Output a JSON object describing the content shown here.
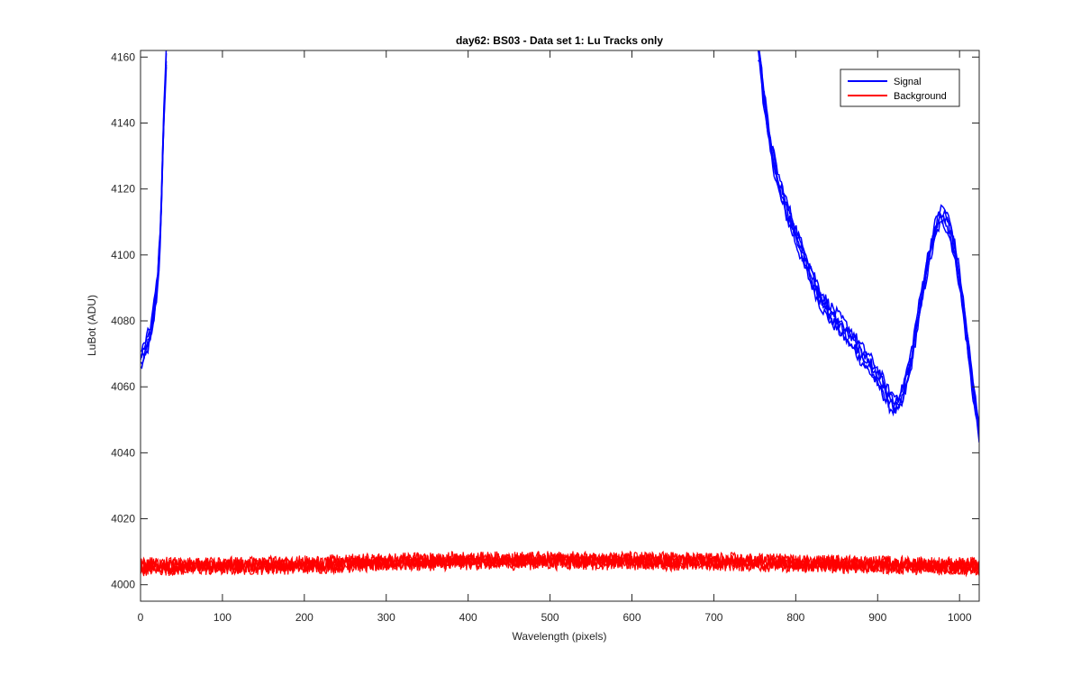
{
  "chart_data": {
    "type": "line",
    "title": "day62: BS03 - Data set 1: Lu Tracks only",
    "xlabel": "Wavelength (pixels)",
    "ylabel": "LuBot (ADU)",
    "xlim": [
      0,
      1024
    ],
    "ylim": [
      3995,
      4162
    ],
    "xticks": [
      "0",
      "100",
      "200",
      "300",
      "400",
      "500",
      "600",
      "700",
      "800",
      "900",
      "1000"
    ],
    "yticks": [
      "4000",
      "4020",
      "4040",
      "4060",
      "4080",
      "4100",
      "4120",
      "4140",
      "4160"
    ],
    "grid": false,
    "legend_position": "top-right",
    "colors": {
      "signal": "#0000ff",
      "background": "#ff0000"
    },
    "series": [
      {
        "name": "Signal",
        "segments": [
          {
            "x": [
              0,
              4,
              8,
              12,
              16,
              20,
              22,
              24,
              26,
              28,
              30,
              32
            ],
            "y": [
              4068,
              4070,
              4073,
              4076,
              4082,
              4090,
              4096,
              4106,
              4120,
              4138,
              4152,
              4162
            ]
          },
          {
            "x": [
              754,
              756,
              758,
              760,
              763,
              766,
              770,
              775,
              780,
              790,
              800,
              810,
              820,
              830,
              840,
              850,
              860,
              870,
              880,
              890,
              900,
              905,
              910,
              915,
              920,
              925,
              930,
              940,
              950,
              960,
              970,
              975,
              980,
              985,
              990,
              995,
              1000,
              1005,
              1010,
              1015,
              1020,
              1024
            ],
            "y": [
              4162,
              4160,
              4156,
              4150,
              4144,
              4138,
              4132,
              4126,
              4121,
              4113,
              4106,
              4099,
              4093,
              4087,
              4083,
              4080,
              4077,
              4074,
              4070,
              4067,
              4063,
              4061,
              4058,
              4056,
              4055,
              4055,
              4057,
              4067,
              4082,
              4096,
              4107,
              4111,
              4112,
              4110,
              4106,
              4100,
              4093,
              4083,
              4073,
              4062,
              4053,
              4047
            ]
          }
        ]
      },
      {
        "name": "Background",
        "segments": [
          {
            "x": [
              0,
              100,
              200,
              300,
              400,
              500,
              600,
              700,
              800,
              900,
              1000,
              1024
            ],
            "y": [
              4005.5,
              4005.7,
              4006,
              4006.8,
              4007.2,
              4007.3,
              4007.2,
              4007,
              4006.5,
              4006,
              4005.6,
              4005.5
            ]
          }
        ]
      }
    ]
  }
}
